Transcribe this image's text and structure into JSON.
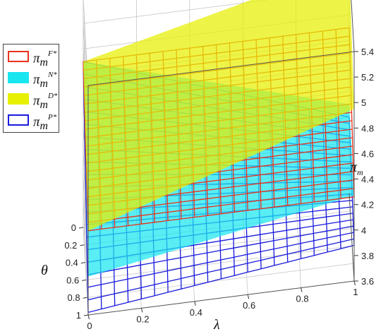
{
  "chart_data": {
    "type": "surface",
    "x": {
      "label": "λ",
      "ticks": [
        "0",
        "0.2",
        "0.4",
        "0.6",
        "0.8",
        "1"
      ],
      "range": [
        0,
        1
      ]
    },
    "y": {
      "label": "θ",
      "ticks": [
        "0",
        "0.2",
        "0.4",
        "0.6",
        "0.8",
        "1"
      ],
      "range": [
        0,
        1
      ]
    },
    "z": {
      "label": "π",
      "label_sub": "m",
      "ticks": [
        "3.6",
        "3.8",
        "4",
        "4.2",
        "4.4",
        "4.6",
        "4.8",
        "5",
        "5.2",
        "5.4"
      ],
      "range": [
        3.6,
        5.4
      ]
    },
    "series": [
      {
        "key": "F",
        "label_base": "π",
        "label_sub": "m",
        "label_sup": "F*",
        "style": "mesh",
        "color": "#e8321e",
        "corners": {
          "l0_t0": 4.9,
          "l1_t0": 4.9,
          "l0_t1": 4.26,
          "l1_t1": 4.26
        }
      },
      {
        "key": "N",
        "label_base": "π",
        "label_sub": "m",
        "label_sup": "N*",
        "style": "filled",
        "color": "#19e6f0",
        "corners": {
          "l0_t0": 4.9,
          "l1_t0": 4.3,
          "l0_t1": 3.9,
          "l1_t1": 4.27
        }
      },
      {
        "key": "D",
        "label_base": "π",
        "label_sub": "m",
        "label_sup": "D*",
        "style": "filled",
        "color": "#e6f000",
        "corners": {
          "l0_t0": 4.9,
          "l1_t0": 5.4,
          "l0_t1": 4.26,
          "l1_t1": 4.95
        }
      },
      {
        "key": "P",
        "label_base": "π",
        "label_sub": "m",
        "label_sup": "P*",
        "style": "mesh",
        "color": "#1a1adc",
        "corners": {
          "l0_t0": 4.9,
          "l1_t0": 4.2,
          "l0_t1": 3.62,
          "l1_t1": 3.88
        }
      }
    ],
    "legend_position": "top-left",
    "grid": true
  }
}
